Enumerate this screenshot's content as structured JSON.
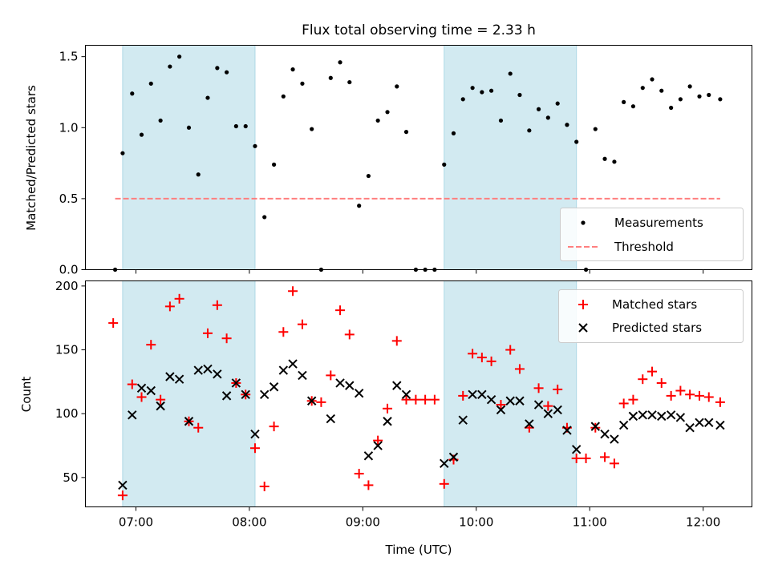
{
  "figure": {
    "title": "Flux total observing time = 2.33 h"
  },
  "colors": {
    "shade": "#add8e6",
    "measurement": "#000000",
    "threshold": "#ff7f7f",
    "matched": "#ff0000",
    "predicted": "#000000"
  },
  "chart_data": [
    {
      "type": "scatter",
      "ylabel": "Matched/Predicted stars",
      "xlim": [
        6.555,
        12.43
      ],
      "ylim": [
        0,
        1.58
      ],
      "yticks": [
        0,
        0.5,
        1.0,
        1.5
      ],
      "ytick_labels": [
        "0.0",
        "0.5",
        "1.0",
        "1.5"
      ],
      "grid": false,
      "legend_position": "lower-right",
      "shaded_spans": [
        [
          6.883,
          8.05
        ],
        [
          9.717,
          10.883
        ]
      ],
      "threshold": {
        "name": "Threshold",
        "value": 0.5,
        "x_range": [
          6.817,
          12.15
        ]
      },
      "series": [
        {
          "name": "Measurements",
          "x": [
            6.817,
            6.883,
            6.967,
            7.05,
            7.133,
            7.217,
            7.3,
            7.383,
            7.467,
            7.55,
            7.633,
            7.717,
            7.8,
            7.883,
            7.967,
            8.05,
            8.133,
            8.217,
            8.3,
            8.383,
            8.467,
            8.55,
            8.633,
            8.717,
            8.8,
            8.883,
            8.967,
            9.05,
            9.133,
            9.217,
            9.3,
            9.383,
            9.467,
            9.55,
            9.633,
            9.717,
            9.8,
            9.883,
            9.967,
            10.05,
            10.133,
            10.217,
            10.3,
            10.383,
            10.467,
            10.55,
            10.633,
            10.717,
            10.8,
            10.883,
            10.967,
            11.05,
            11.133,
            11.217,
            11.3,
            11.383,
            11.467,
            11.55,
            11.633,
            11.717,
            11.8,
            11.883,
            11.967,
            12.05,
            12.15
          ],
          "y": [
            0.0,
            0.82,
            1.24,
            0.95,
            1.31,
            1.05,
            1.43,
            1.5,
            1.0,
            0.67,
            1.21,
            1.42,
            1.39,
            1.01,
            1.01,
            0.87,
            0.37,
            0.74,
            1.22,
            1.41,
            1.31,
            0.99,
            0.0,
            1.35,
            1.46,
            1.32,
            0.45,
            0.66,
            1.05,
            1.11,
            1.29,
            0.97,
            0.0,
            0.0,
            0.0,
            0.74,
            0.96,
            1.2,
            1.28,
            1.25,
            1.26,
            1.05,
            1.38,
            1.23,
            0.98,
            1.13,
            1.07,
            1.17,
            1.02,
            0.9,
            0.0,
            0.99,
            0.78,
            0.76,
            1.18,
            1.15,
            1.28,
            1.34,
            1.26,
            1.14,
            1.2,
            1.29,
            1.22,
            1.23,
            1.2
          ]
        }
      ]
    },
    {
      "type": "scatter",
      "xlabel": "Time (UTC)",
      "ylabel": "Count",
      "xlim": [
        6.555,
        12.43
      ],
      "ylim": [
        27,
        204
      ],
      "yticks": [
        50,
        100,
        150,
        200
      ],
      "ytick_labels": [
        "50",
        "100",
        "150",
        "200"
      ],
      "xticks": [
        7,
        8,
        9,
        10,
        11,
        12
      ],
      "xtick_labels": [
        "07:00",
        "08:00",
        "09:00",
        "10:00",
        "11:00",
        "12:00"
      ],
      "grid": false,
      "legend_position": "top-right",
      "shaded_spans": [
        [
          6.883,
          8.05
        ],
        [
          9.717,
          10.883
        ]
      ],
      "series": [
        {
          "name": "Matched stars",
          "marker": "plus",
          "x": [
            6.8,
            6.883,
            6.967,
            7.05,
            7.133,
            7.217,
            7.3,
            7.383,
            7.467,
            7.55,
            7.633,
            7.717,
            7.8,
            7.883,
            7.967,
            8.05,
            8.133,
            8.217,
            8.3,
            8.383,
            8.467,
            8.55,
            8.633,
            8.717,
            8.8,
            8.883,
            8.967,
            9.05,
            9.133,
            9.217,
            9.3,
            9.383,
            9.467,
            9.55,
            9.633,
            9.717,
            9.8,
            9.883,
            9.967,
            10.05,
            10.133,
            10.217,
            10.3,
            10.383,
            10.467,
            10.55,
            10.633,
            10.717,
            10.8,
            10.883,
            10.967,
            11.05,
            11.133,
            11.217,
            11.3,
            11.383,
            11.467,
            11.55,
            11.633,
            11.717,
            11.8,
            11.883,
            11.967,
            12.05,
            12.15
          ],
          "y": [
            171,
            36,
            123,
            113,
            154,
            111,
            184,
            190,
            94,
            89,
            163,
            185,
            159,
            124,
            115,
            73,
            43,
            90,
            164,
            196,
            170,
            110,
            109,
            130,
            181,
            162,
            53,
            44,
            79,
            104,
            157,
            111,
            111,
            111,
            111,
            45,
            64,
            114,
            147,
            144,
            141,
            107,
            150,
            135,
            89,
            120,
            106,
            119,
            89,
            65,
            65,
            89,
            66,
            61,
            108,
            111,
            127,
            133,
            124,
            114,
            118,
            115,
            114,
            113,
            109
          ]
        },
        {
          "name": "Predicted stars",
          "marker": "x",
          "x": [
            6.883,
            6.967,
            7.05,
            7.133,
            7.217,
            7.3,
            7.383,
            7.467,
            7.55,
            7.633,
            7.717,
            7.8,
            7.883,
            7.967,
            8.05,
            8.133,
            8.217,
            8.3,
            8.383,
            8.467,
            8.55,
            8.717,
            8.8,
            8.883,
            8.967,
            9.05,
            9.133,
            9.217,
            9.3,
            9.383,
            9.717,
            9.8,
            9.883,
            9.967,
            10.05,
            10.133,
            10.217,
            10.3,
            10.383,
            10.467,
            10.55,
            10.633,
            10.717,
            10.8,
            10.883,
            11.05,
            11.133,
            11.217,
            11.3,
            11.383,
            11.467,
            11.55,
            11.633,
            11.717,
            11.8,
            11.883,
            11.967,
            12.05,
            12.15
          ],
          "y": [
            44,
            99,
            120,
            118,
            106,
            129,
            127,
            94,
            134,
            135,
            131,
            114,
            124,
            115,
            84,
            115,
            121,
            134,
            139,
            130,
            110,
            96,
            124,
            122,
            116,
            67,
            75,
            94,
            122,
            115,
            61,
            66,
            95,
            115,
            115,
            111,
            103,
            110,
            110,
            92,
            107,
            100,
            103,
            87,
            72,
            90,
            84,
            80,
            91,
            98,
            99,
            99,
            98,
            99,
            97,
            89,
            93,
            93,
            91
          ]
        }
      ]
    }
  ]
}
